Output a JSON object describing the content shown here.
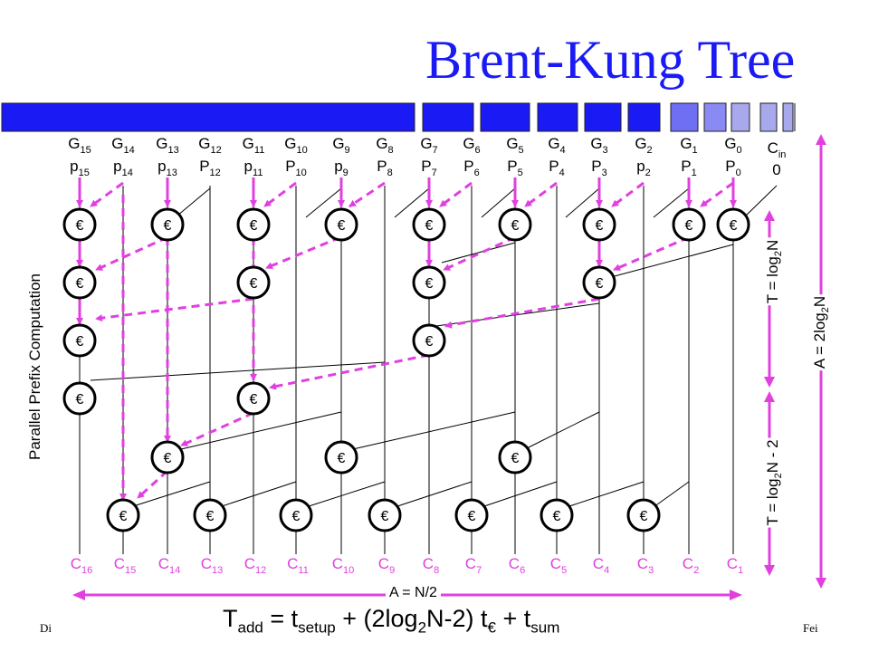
{
  "title": "Brent-Kung Tree",
  "footer": {
    "left": "Di",
    "right": "Fei"
  },
  "inputs": [
    {
      "g": "G",
      "gs": "15",
      "p": "p",
      "ps": "15"
    },
    {
      "g": "G",
      "gs": "14",
      "p": "p",
      "ps": "14"
    },
    {
      "g": "G",
      "gs": "13",
      "p": "p",
      "ps": "13"
    },
    {
      "g": "G",
      "gs": "12",
      "p": "P",
      "ps": "12"
    },
    {
      "g": "G",
      "gs": "11",
      "p": "p",
      "ps": "11"
    },
    {
      "g": "G",
      "gs": "10",
      "p": "P",
      "ps": "10"
    },
    {
      "g": "G",
      "gs": "9",
      "p": "p",
      "ps": "9"
    },
    {
      "g": "G",
      "gs": "8",
      "p": "P",
      "ps": "8"
    },
    {
      "g": "G",
      "gs": "7",
      "p": "P",
      "ps": "7"
    },
    {
      "g": "G",
      "gs": "6",
      "p": "P",
      "ps": "6"
    },
    {
      "g": "G",
      "gs": "5",
      "p": "P",
      "ps": "5"
    },
    {
      "g": "G",
      "gs": "4",
      "p": "P",
      "ps": "4"
    },
    {
      "g": "G",
      "gs": "3",
      "p": "P",
      "ps": "3"
    },
    {
      "g": "G",
      "gs": "2",
      "p": "p",
      "ps": "2"
    },
    {
      "g": "G",
      "gs": "1",
      "p": "P",
      "ps": "1"
    },
    {
      "g": "G",
      "gs": "0",
      "p": "P",
      "ps": "0"
    }
  ],
  "cin": {
    "label": "C",
    "sub": "in",
    "value": "0"
  },
  "outputs": [
    {
      "c": "C",
      "s": "16"
    },
    {
      "c": "C",
      "s": "15"
    },
    {
      "c": "C",
      "s": "14"
    },
    {
      "c": "C",
      "s": "13"
    },
    {
      "c": "C",
      "s": "12"
    },
    {
      "c": "C",
      "s": "11"
    },
    {
      "c": "C",
      "s": "10"
    },
    {
      "c": "C",
      "s": "9"
    },
    {
      "c": "C",
      "s": "8"
    },
    {
      "c": "C",
      "s": "7"
    },
    {
      "c": "C",
      "s": "6"
    },
    {
      "c": "C",
      "s": "5"
    },
    {
      "c": "C",
      "s": "4"
    },
    {
      "c": "C",
      "s": "3"
    },
    {
      "c": "C",
      "s": "2"
    },
    {
      "c": "C",
      "s": "1"
    }
  ],
  "node_symbol": "€",
  "side_label": "Parallel Prefix Computation",
  "t_upper": {
    "pre": "T = log",
    "sub": "2",
    "post": "N"
  },
  "t_lower": {
    "pre": "T = log",
    "sub": "2",
    "post": "N - 2"
  },
  "a_right": {
    "pre": "A = 2log",
    "sub": "2",
    "post": "N"
  },
  "a_bottom": "A = N/2",
  "formula": {
    "t": "T",
    "t_sub": "add",
    "eq": " = t",
    "setup": "setup",
    "mid1": " + (2log",
    "two": "2",
    "mid2": "N-2) t",
    "euro": "€",
    "mid3": " + t",
    "sum": "sum"
  },
  "colors": {
    "magenta": "#e040e0",
    "blue": "#1a1af5",
    "gray": "#a8a8ec"
  }
}
